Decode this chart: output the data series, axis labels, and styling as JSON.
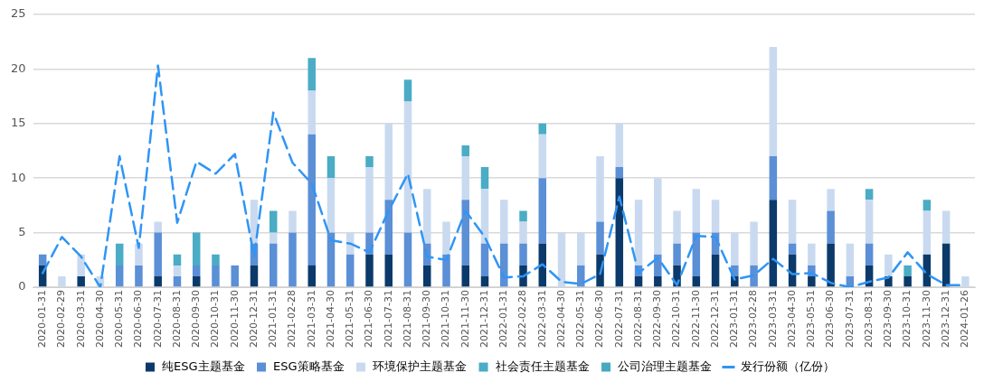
{
  "chart_data": {
    "type": "bar",
    "stacked": true,
    "categories": [
      "2020-01-31",
      "2020-02-29",
      "2020-03-31",
      "2020-04-30",
      "2020-05-31",
      "2020-06-30",
      "2020-07-31",
      "2020-08-31",
      "2020-09-30",
      "2020-10-31",
      "2020-11-30",
      "2020-12-31",
      "2021-01-31",
      "2021-02-28",
      "2021-03-31",
      "2021-04-30",
      "2021-05-31",
      "2021-06-30",
      "2021-07-31",
      "2021-08-31",
      "2021-09-30",
      "2021-10-31",
      "2021-11-30",
      "2021-12-31",
      "2022-01-31",
      "2022-02-28",
      "2022-03-31",
      "2022-04-30",
      "2022-05-31",
      "2022-06-30",
      "2022-07-31",
      "2022-08-31",
      "2022-09-30",
      "2022-10-31",
      "2022-11-30",
      "2022-12-31",
      "2023-01-31",
      "2023-02-28",
      "2023-03-31",
      "2023-04-30",
      "2023-05-31",
      "2023-06-30",
      "2023-07-31",
      "2023-08-31",
      "2023-09-30",
      "2023-10-31",
      "2023-11-30",
      "2023-12-31",
      "2024-01-26"
    ],
    "series": [
      {
        "name": "纯ESG主题基金",
        "color": "#0b3a6a",
        "values": [
          2,
          0,
          1,
          0,
          0,
          0,
          1,
          0,
          1,
          0,
          0,
          2,
          0,
          0,
          2,
          0,
          0,
          3,
          3,
          0,
          2,
          0,
          2,
          1,
          0,
          2,
          4,
          0,
          0,
          3,
          10,
          1,
          1,
          2,
          1,
          3,
          1,
          0,
          8,
          3,
          1,
          4,
          0,
          2,
          1,
          1,
          3,
          4,
          0
        ]
      },
      {
        "name": "ESG策略基金",
        "color": "#5b8fd6",
        "values": [
          1,
          0,
          0,
          0,
          2,
          2,
          4,
          1,
          1,
          2,
          2,
          2,
          4,
          5,
          12,
          5,
          3,
          2,
          5,
          5,
          2,
          3,
          6,
          3,
          4,
          2,
          6,
          0,
          2,
          3,
          1,
          1,
          2,
          2,
          4,
          2,
          1,
          2,
          4,
          1,
          1,
          3,
          1,
          2,
          0,
          0,
          0,
          0,
          0
        ]
      },
      {
        "name": "环境保护主题基金",
        "color": "#c9daf0",
        "values": [
          0,
          1,
          2,
          1,
          0,
          2,
          1,
          1,
          0,
          0,
          0,
          4,
          1,
          2,
          4,
          5,
          2,
          6,
          7,
          12,
          5,
          3,
          4,
          5,
          4,
          2,
          4,
          5,
          3,
          6,
          4,
          6,
          7,
          3,
          4,
          3,
          3,
          4,
          10,
          4,
          2,
          2,
          3,
          4,
          2,
          0,
          4,
          3,
          1
        ]
      },
      {
        "name": "社会责任主题基金",
        "color": "#4aacc5",
        "values": [
          0,
          0,
          0,
          0,
          2,
          0,
          0,
          1,
          3,
          1,
          0,
          0,
          2,
          0,
          3,
          2,
          0,
          1,
          0,
          2,
          0,
          0,
          1,
          2,
          0,
          1,
          1,
          0,
          0,
          0,
          0,
          0,
          0,
          0,
          0,
          0,
          0,
          0,
          0,
          0,
          0,
          0,
          0,
          1,
          0,
          1,
          1,
          0,
          0
        ]
      },
      {
        "name": "公司治理主题基金",
        "color": "#45a9c0",
        "values": [
          0,
          0,
          0,
          0,
          0,
          0,
          0,
          0,
          0,
          0,
          0,
          0,
          0,
          0,
          0,
          0,
          0,
          0,
          0,
          0,
          0,
          0,
          0,
          0,
          0,
          0,
          0,
          0,
          0,
          0,
          0,
          0,
          0,
          0,
          0,
          0,
          0,
          0,
          0,
          0,
          0,
          0,
          0,
          0,
          0,
          0,
          0,
          0,
          0
        ]
      },
      {
        "name": "发行份额（亿份）",
        "type": "line",
        "color": "#2f95f5",
        "line_style": "dashed",
        "marker": "none",
        "values": [
          1.3,
          4.6,
          2.8,
          0,
          12,
          3.6,
          20.3,
          5.9,
          11.5,
          10.4,
          12.2,
          2.8,
          16,
          11.4,
          9.5,
          4.3,
          4,
          3.2,
          7,
          10.4,
          2.8,
          2.5,
          7,
          4.6,
          0.9,
          1,
          2.1,
          0.5,
          0.3,
          1.2,
          8.3,
          1.3,
          2.7,
          0.2,
          4.7,
          4.6,
          0.7,
          1.1,
          2.6,
          1.2,
          1.3,
          0.4,
          0,
          0.5,
          0.9,
          3.2,
          1.2,
          0.2,
          0.2
        ]
      }
    ],
    "ylim": [
      0,
      25
    ],
    "yticks": [
      0,
      5,
      10,
      15,
      20,
      25
    ],
    "grid": "y",
    "legend": "bottom"
  }
}
